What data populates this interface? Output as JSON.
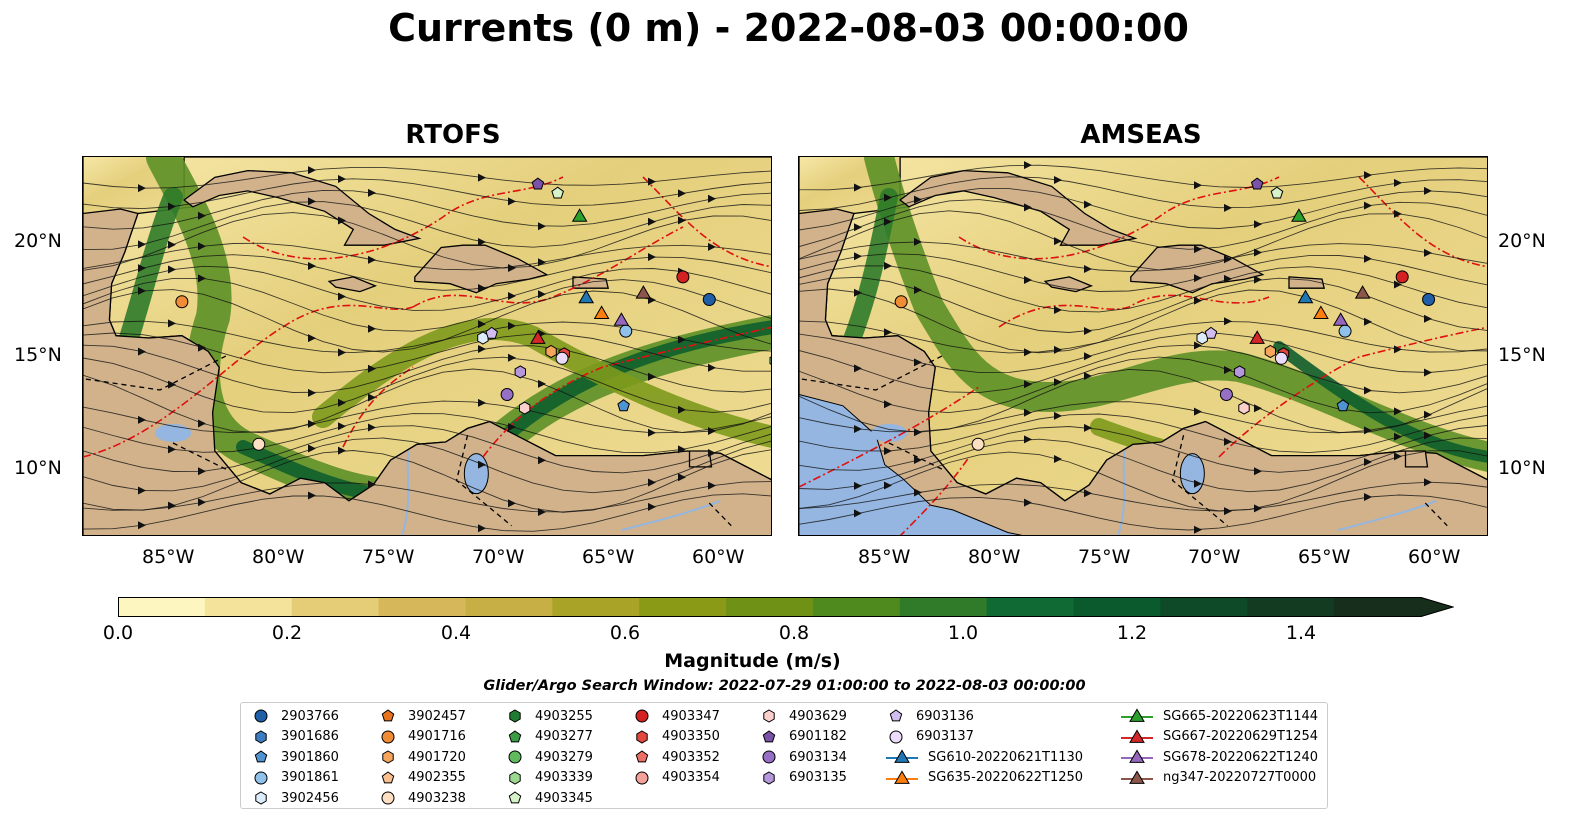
{
  "title": "Currents (0 m) - 2022-08-03 00:00:00",
  "panels": [
    {
      "title": "RTOFS"
    },
    {
      "title": "AMSEAS"
    }
  ],
  "axes": {
    "x_ticks": [
      "85°W",
      "80°W",
      "75°W",
      "70°W",
      "65°W",
      "60°W"
    ],
    "y_ticks": [
      "20°N",
      "15°N",
      "10°N"
    ],
    "lon_range": [
      -89.5,
      -58.1
    ],
    "lat_range": [
      7.0,
      23.8
    ]
  },
  "colorbar": {
    "label": "Magnitude (m/s)",
    "ticks": [
      "0.0",
      "0.2",
      "0.4",
      "0.6",
      "0.8",
      "1.0",
      "1.2",
      "1.4"
    ],
    "range": [
      0,
      1.5
    ],
    "extend": "max",
    "colors": [
      "#fef6c0",
      "#f3e39b",
      "#e5cd78",
      "#d6b85a",
      "#c7ae45",
      "#a9a328",
      "#8a9a17",
      "#6e9116",
      "#4f8a1f",
      "#2f7b2a",
      "#0f6b33",
      "#0b5a2e",
      "#0e4a28",
      "#133b22",
      "#172e1c"
    ]
  },
  "search_window": "Glider/Argo Search Window: 2022-07-29 01:00:00 to 2022-08-03 00:00:00",
  "legend": [
    {
      "label": "2903766",
      "marker": "circle",
      "color": "#1f5fa8"
    },
    {
      "label": "3901686",
      "marker": "hexagon",
      "color": "#3b7dc0"
    },
    {
      "label": "3901860",
      "marker": "pentagon",
      "color": "#4f93d1"
    },
    {
      "label": "3901861",
      "marker": "circle",
      "color": "#8fc1ea"
    },
    {
      "label": "3902456",
      "marker": "hexagon",
      "color": "#dcecfb"
    },
    {
      "label": "3902457",
      "marker": "pentagon",
      "color": "#e8741d"
    },
    {
      "label": "4901716",
      "marker": "circle",
      "color": "#f08c35"
    },
    {
      "label": "4901720",
      "marker": "hexagon",
      "color": "#f5a55c"
    },
    {
      "label": "4902355",
      "marker": "pentagon",
      "color": "#f8c08f"
    },
    {
      "label": "4903238",
      "marker": "circle",
      "color": "#fde0c4"
    },
    {
      "label": "4903255",
      "marker": "hexagon",
      "color": "#1e7d32"
    },
    {
      "label": "4903277",
      "marker": "pentagon",
      "color": "#3a9c45"
    },
    {
      "label": "4903279",
      "marker": "circle",
      "color": "#61bb5e"
    },
    {
      "label": "4903339",
      "marker": "hexagon",
      "color": "#9dd88f"
    },
    {
      "label": "4903345",
      "marker": "pentagon",
      "color": "#d6f2c8"
    },
    {
      "label": "4903347",
      "marker": "circle",
      "color": "#d42222"
    },
    {
      "label": "4903350",
      "marker": "hexagon",
      "color": "#e2473e"
    },
    {
      "label": "4903352",
      "marker": "pentagon",
      "color": "#ec6f66"
    },
    {
      "label": "4903354",
      "marker": "circle",
      "color": "#f4a29a"
    },
    {
      "label": "4903629",
      "marker": "hexagon",
      "color": "#fbd0cc"
    },
    {
      "label": "6901182",
      "marker": "pentagon",
      "color": "#7a53a8"
    },
    {
      "label": "6903134",
      "marker": "circle",
      "color": "#9670c4"
    },
    {
      "label": "6903135",
      "marker": "hexagon",
      "color": "#b597dc"
    },
    {
      "label": "6903136",
      "marker": "pentagon",
      "color": "#d2bdf0"
    },
    {
      "label": "6903137",
      "marker": "circle",
      "color": "#ecdcfb"
    },
    {
      "label": "SG610-20220621T1130",
      "marker": "triangle",
      "color": "#1f77b4"
    },
    {
      "label": "SG635-20220622T1250",
      "marker": "triangle",
      "color": "#ff7f0e"
    },
    {
      "label": "SG665-20220623T1144",
      "marker": "triangle",
      "color": "#2ca02c"
    },
    {
      "label": "SG667-20220629T1254",
      "marker": "triangle",
      "color": "#d62728"
    },
    {
      "label": "SG678-20220622T1240",
      "marker": "triangle",
      "color": "#9467bd"
    },
    {
      "label": "ng347-20220727T0000",
      "marker": "triangle",
      "color": "#8c564b"
    }
  ],
  "platform_positions": [
    {
      "id": "2903766",
      "lon": -61.0,
      "lat": 17.5
    },
    {
      "id": "3901861",
      "lon": -64.8,
      "lat": 16.1
    },
    {
      "id": "3902456",
      "lon": -71.3,
      "lat": 15.8
    },
    {
      "id": "3901860",
      "lon": -64.9,
      "lat": 12.8
    },
    {
      "id": "4901716",
      "lon": -85.0,
      "lat": 17.4
    },
    {
      "id": "4903238",
      "lon": -81.5,
      "lat": 11.1
    },
    {
      "id": "4901720",
      "lon": -68.2,
      "lat": 15.2
    },
    {
      "id": "4903339",
      "lon": -58.0,
      "lat": 14.8
    },
    {
      "id": "4903345",
      "lon": -67.9,
      "lat": 22.2
    },
    {
      "id": "4903347",
      "lon": -62.2,
      "lat": 18.5
    },
    {
      "id": "4903350",
      "lon": -67.6,
      "lat": 15.1
    },
    {
      "id": "4903629",
      "lon": -69.4,
      "lat": 12.7
    },
    {
      "id": "6901182",
      "lon": -68.8,
      "lat": 22.6
    },
    {
      "id": "6903134",
      "lon": -70.2,
      "lat": 13.3
    },
    {
      "id": "6903135",
      "lon": -69.6,
      "lat": 14.3
    },
    {
      "id": "6903136",
      "lon": -70.9,
      "lat": 16.0
    },
    {
      "id": "6903137",
      "lon": -67.7,
      "lat": 14.9
    },
    {
      "id": "SG610-20220621T1130",
      "lon": -66.6,
      "lat": 17.6
    },
    {
      "id": "SG635-20220622T1250",
      "lon": -65.9,
      "lat": 16.9
    },
    {
      "id": "SG665-20220623T1144",
      "lon": -66.9,
      "lat": 21.2
    },
    {
      "id": "SG667-20220629T1254",
      "lon": -68.8,
      "lat": 15.8
    },
    {
      "id": "SG678-20220622T1240",
      "lon": -65.0,
      "lat": 16.6
    },
    {
      "id": "ng347-20220727T0000",
      "lon": -64.0,
      "lat": 17.8
    }
  ]
}
